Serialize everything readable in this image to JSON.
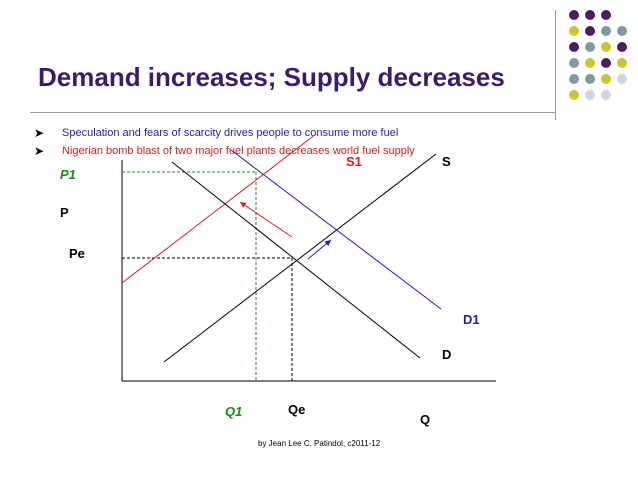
{
  "title": "Demand increases; Supply decreases",
  "bullets": [
    {
      "text": "Speculation and fears of scarcity drives people to consume more fuel",
      "color": "#1f1fb4"
    },
    {
      "text": "Nigerian bomb blast of two major fuel plants decreases world fuel supply",
      "color": "#d21f1f"
    }
  ],
  "labels": {
    "p1": "P1",
    "p": "P",
    "pe": "Pe",
    "s1": "S1",
    "s": "S",
    "d1": "D1",
    "d": "D",
    "q1": "Q1",
    "qe": "Qe",
    "q": "Q"
  },
  "footer": "by Jean Lee C. Patindol, c2011-12",
  "colors": {
    "title": "#3d1a6e",
    "purple": "#4b1d5f",
    "teal": "#7c9ba0",
    "olive": "#c9c72a",
    "lavender": "#d3d3e6",
    "red": "#d21f1f",
    "blue": "#1f1fb4",
    "green": "#1a8a1a"
  }
}
